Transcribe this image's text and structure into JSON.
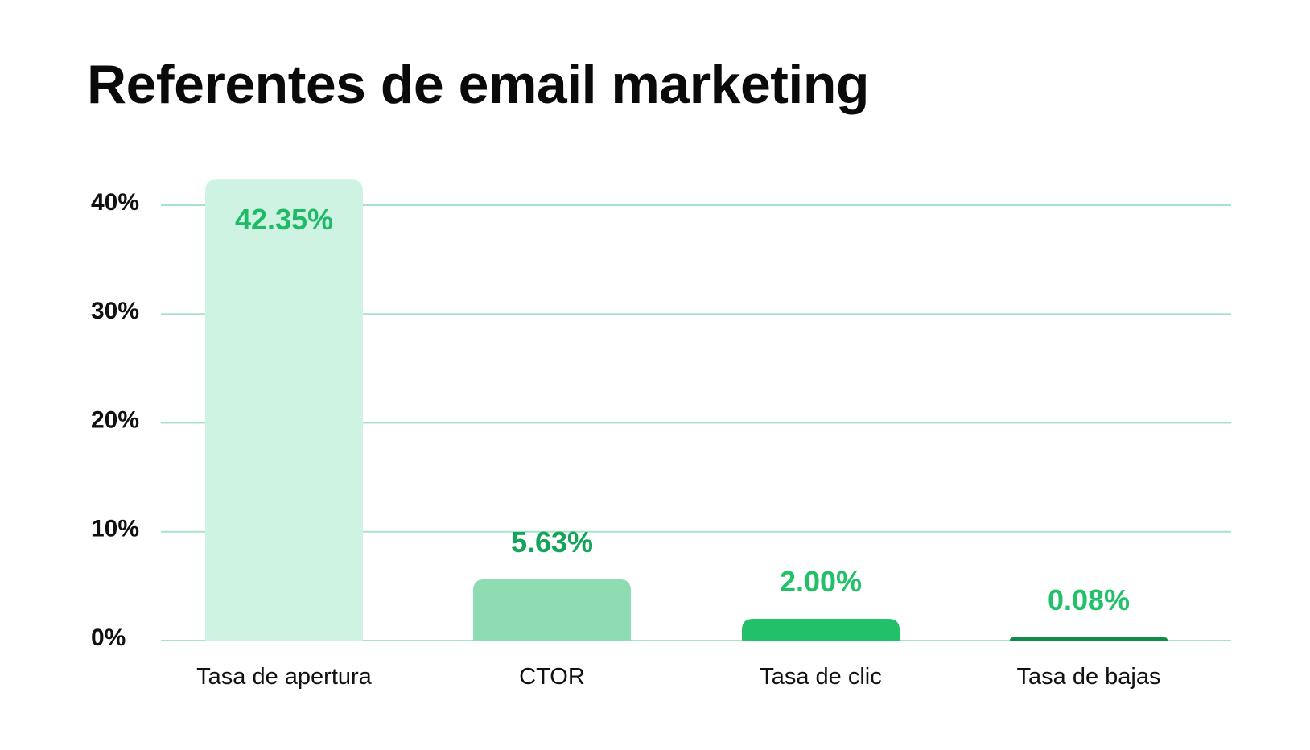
{
  "chart_data": {
    "type": "bar",
    "title": "Referentes de email marketing",
    "xlabel": "",
    "ylabel": "",
    "categories": [
      "Tasa de apertura",
      "CTOR",
      "Tasa de clic",
      "Tasa de bajas"
    ],
    "values": [
      42.35,
      5.63,
      2.0,
      0.08
    ],
    "value_labels": [
      "42.35%",
      "5.63%",
      "2.00%",
      "0.08%"
    ],
    "yticks": [
      0,
      10,
      20,
      30,
      40
    ],
    "ytick_labels": [
      "0%",
      "10%",
      "20%",
      "30%",
      "40%"
    ],
    "ylim": [
      0,
      40
    ],
    "grid": true,
    "legend": "none",
    "bar_colors": [
      "#cff3e2",
      "#8fdcb2",
      "#22c068",
      "#0f8c4a"
    ],
    "label_colors": [
      "#1fba67",
      "#13a35a",
      "#22c068",
      "#22c068"
    ],
    "gridline_color": "#a8e2c8",
    "title_color": "#0a0a0a"
  }
}
